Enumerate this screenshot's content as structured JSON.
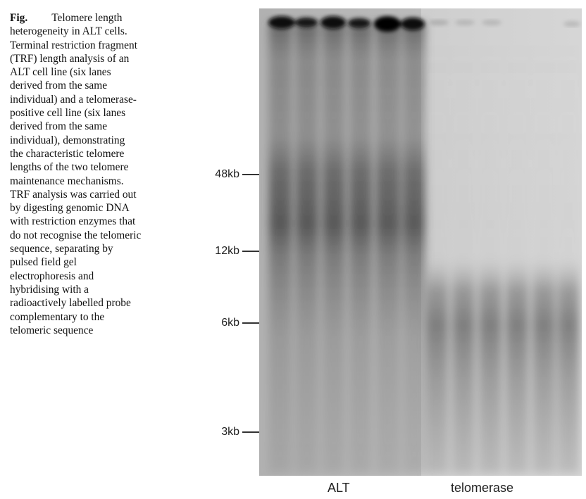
{
  "figure": {
    "label": "Fig.",
    "caption_lines": [
      "Telomere length",
      "heterogeneity in ALT cells.",
      "Terminal restriction fragment",
      "(TRF) length analysis of an",
      "ALT cell line (six lanes",
      "derived from the same",
      "individual) and a telomerase-",
      "positive cell line (six lanes",
      "derived from the same",
      "individual), demonstrating",
      "the characteristic telomere",
      "lengths of the two telomere",
      "maintenance mechanisms.",
      "TRF analysis was carried out",
      "by digesting genomic DNA",
      "with restriction enzymes that",
      "do not recognise the telomeric",
      "sequence, separating by",
      "pulsed field gel",
      "electrophoresis and",
      "hybridising with a",
      "radioactively labelled probe",
      "complementary to the",
      "telomeric sequence"
    ]
  },
  "gel": {
    "size_markers": [
      "48kb",
      "12kb",
      "6kb",
      "3kb"
    ],
    "groups": [
      "ALT",
      "telomerase"
    ],
    "lanes_per_group": 6
  }
}
